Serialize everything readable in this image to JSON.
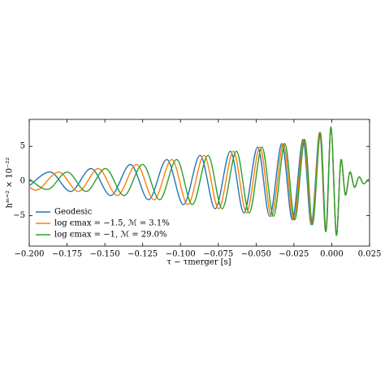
{
  "chart_data": {
    "type": "line",
    "xlabel": "τ − τmerger [s]",
    "ylabel": "hᵐ⁼² × 10⁻²²",
    "xlim": [
      -0.2,
      0.025
    ],
    "ylim": [
      -9.4,
      8.9
    ],
    "xticks": [
      {
        "value": -0.2,
        "label": "−0.200"
      },
      {
        "value": -0.175,
        "label": "−0.175"
      },
      {
        "value": -0.15,
        "label": "−0.150"
      },
      {
        "value": -0.125,
        "label": "−0.125"
      },
      {
        "value": -0.1,
        "label": "−0.100"
      },
      {
        "value": -0.075,
        "label": "−0.075"
      },
      {
        "value": -0.05,
        "label": "−0.050"
      },
      {
        "value": -0.025,
        "label": "−0.025"
      },
      {
        "value": 0,
        "label": "0.000"
      },
      {
        "value": 0.025,
        "label": "0.025"
      }
    ],
    "yticks": [
      {
        "value": -5,
        "label": "−5"
      },
      0,
      5
    ],
    "legend": "lower left",
    "series": [
      {
        "name": "Geodesic",
        "color": "#1f77b4",
        "x": [
          -0.2,
          -0.186,
          -0.1725,
          -0.159,
          -0.146,
          -0.133,
          -0.121,
          -0.109,
          -0.098,
          -0.087,
          -0.077,
          -0.067,
          -0.058,
          -0.049,
          -0.041,
          -0.033,
          -0.026,
          -0.019,
          -0.0135,
          -0.008,
          -0.004,
          -0.0005,
          0.003,
          0.006,
          0.009,
          0.012,
          0.015,
          0.018,
          0.021,
          0.024,
          0.025
        ],
        "values": [
          -0.7,
          1.3,
          -1.5,
          1.8,
          -2.1,
          2.4,
          -2.7,
          3.1,
          -3.4,
          3.7,
          -4.0,
          4.3,
          -4.6,
          4.9,
          -5.1,
          5.4,
          -5.6,
          6.0,
          -6.3,
          7.0,
          -7.3,
          7.8,
          -7.8,
          3.0,
          -2.0,
          1.3,
          -0.9,
          0.6,
          -0.4,
          0.2,
          0
        ]
      },
      {
        "name": "log ϵmax = −1.5, ℳ = 3.1%",
        "color": "#ff7f0e",
        "x": [
          -0.2,
          -0.1935,
          -0.1804,
          -0.1673,
          -0.1542,
          -0.1416,
          -0.129,
          -0.1174,
          -0.1057,
          -0.0951,
          -0.0844,
          -0.0747,
          -0.065,
          -0.0563,
          -0.0475,
          -0.0398,
          -0.032,
          -0.0252,
          -0.0184,
          -0.0131,
          -0.0078,
          -0.0039,
          -0.0005,
          0.003,
          0.006,
          0.009,
          0.012,
          0.015,
          0.018,
          0.021,
          0.024,
          0.025
        ],
        "values": [
          -0.9,
          -1.2,
          1.3,
          -1.5,
          1.8,
          -2.1,
          2.4,
          -2.7,
          3.1,
          -3.4,
          3.7,
          -4.0,
          4.3,
          -4.6,
          4.9,
          -5.1,
          5.4,
          -5.6,
          6.0,
          -6.3,
          7.0,
          -7.3,
          7.8,
          -7.8,
          3.0,
          -2.0,
          1.3,
          -0.9,
          0.6,
          -0.4,
          0.2,
          0
        ]
      },
      {
        "name": "log ϵmax = −1, ℳ = 29.0%",
        "color": "#2ca02c",
        "x": [
          -0.2,
          -0.1875,
          -0.1748,
          -0.1622,
          -0.1495,
          -0.1372,
          -0.125,
          -0.1137,
          -0.1025,
          -0.0921,
          -0.0818,
          -0.0724,
          -0.063,
          -0.0545,
          -0.0461,
          -0.0385,
          -0.031,
          -0.0244,
          -0.0179,
          -0.0127,
          -0.0075,
          -0.0038,
          -0.0005,
          0.003,
          0.006,
          0.009,
          0.012,
          0.015,
          0.018,
          0.021,
          0.024,
          0.025
        ],
        "values": [
          0.3,
          -1.2,
          1.3,
          -1.5,
          1.8,
          -2.1,
          2.4,
          -2.7,
          3.1,
          -3.4,
          3.7,
          -4.0,
          4.3,
          -4.6,
          4.9,
          -5.1,
          5.4,
          -5.6,
          6.0,
          -6.3,
          7.0,
          -7.3,
          7.8,
          -7.8,
          3.0,
          -2.0,
          1.3,
          -0.9,
          0.6,
          -0.4,
          0.2,
          0
        ]
      }
    ]
  }
}
